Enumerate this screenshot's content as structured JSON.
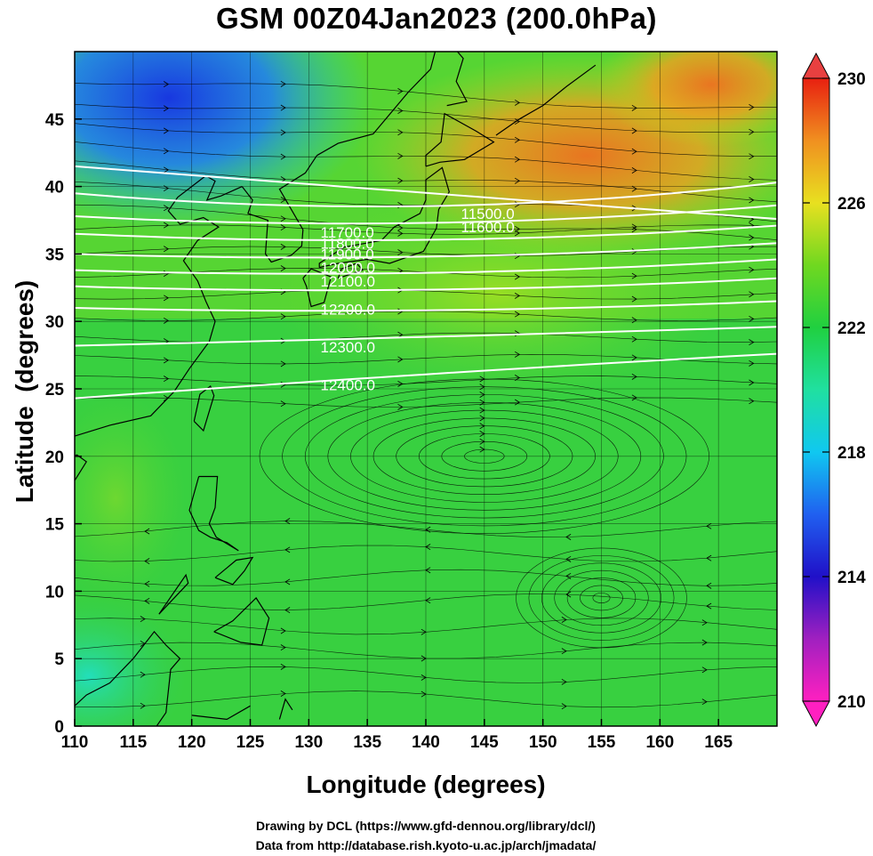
{
  "title": "GSM 00Z04Jan2023 (200.0hPa)",
  "xlabel": "Longitude (degrees)",
  "ylabel": "Latitude  (degrees)",
  "credits": {
    "line1": "Drawing by DCL (https://www.gfd-dennou.org/library/dcl/)",
    "line2": "Data from http://database.rish.kyoto-u.ac.jp/arch/jmadata/"
  },
  "map": {
    "lon_range": [
      110,
      170
    ],
    "lat_range": [
      0,
      50
    ],
    "lon_ticks": [
      "110",
      "115",
      "120",
      "125",
      "130",
      "135",
      "140",
      "145",
      "150",
      "155",
      "160",
      "165"
    ],
    "lat_ticks": [
      "0",
      "5",
      "10",
      "15",
      "20",
      "25",
      "30",
      "35",
      "40",
      "45"
    ],
    "contour_labels": [
      "11500.0",
      "11600.0",
      "11700.0",
      "11800.0",
      "11900.0",
      "12000.0",
      "12100.0",
      "12200.0",
      "12300.0",
      "12400.0"
    ],
    "colorbar": {
      "labels": [
        "230",
        "226",
        "222",
        "218",
        "214",
        "210"
      ],
      "min": 210,
      "max": 230
    }
  },
  "colors": {
    "field_warm": "#f07020",
    "field_mid": "#30d030",
    "field_cold": "#2050e0",
    "contour": "#ffffff"
  }
}
